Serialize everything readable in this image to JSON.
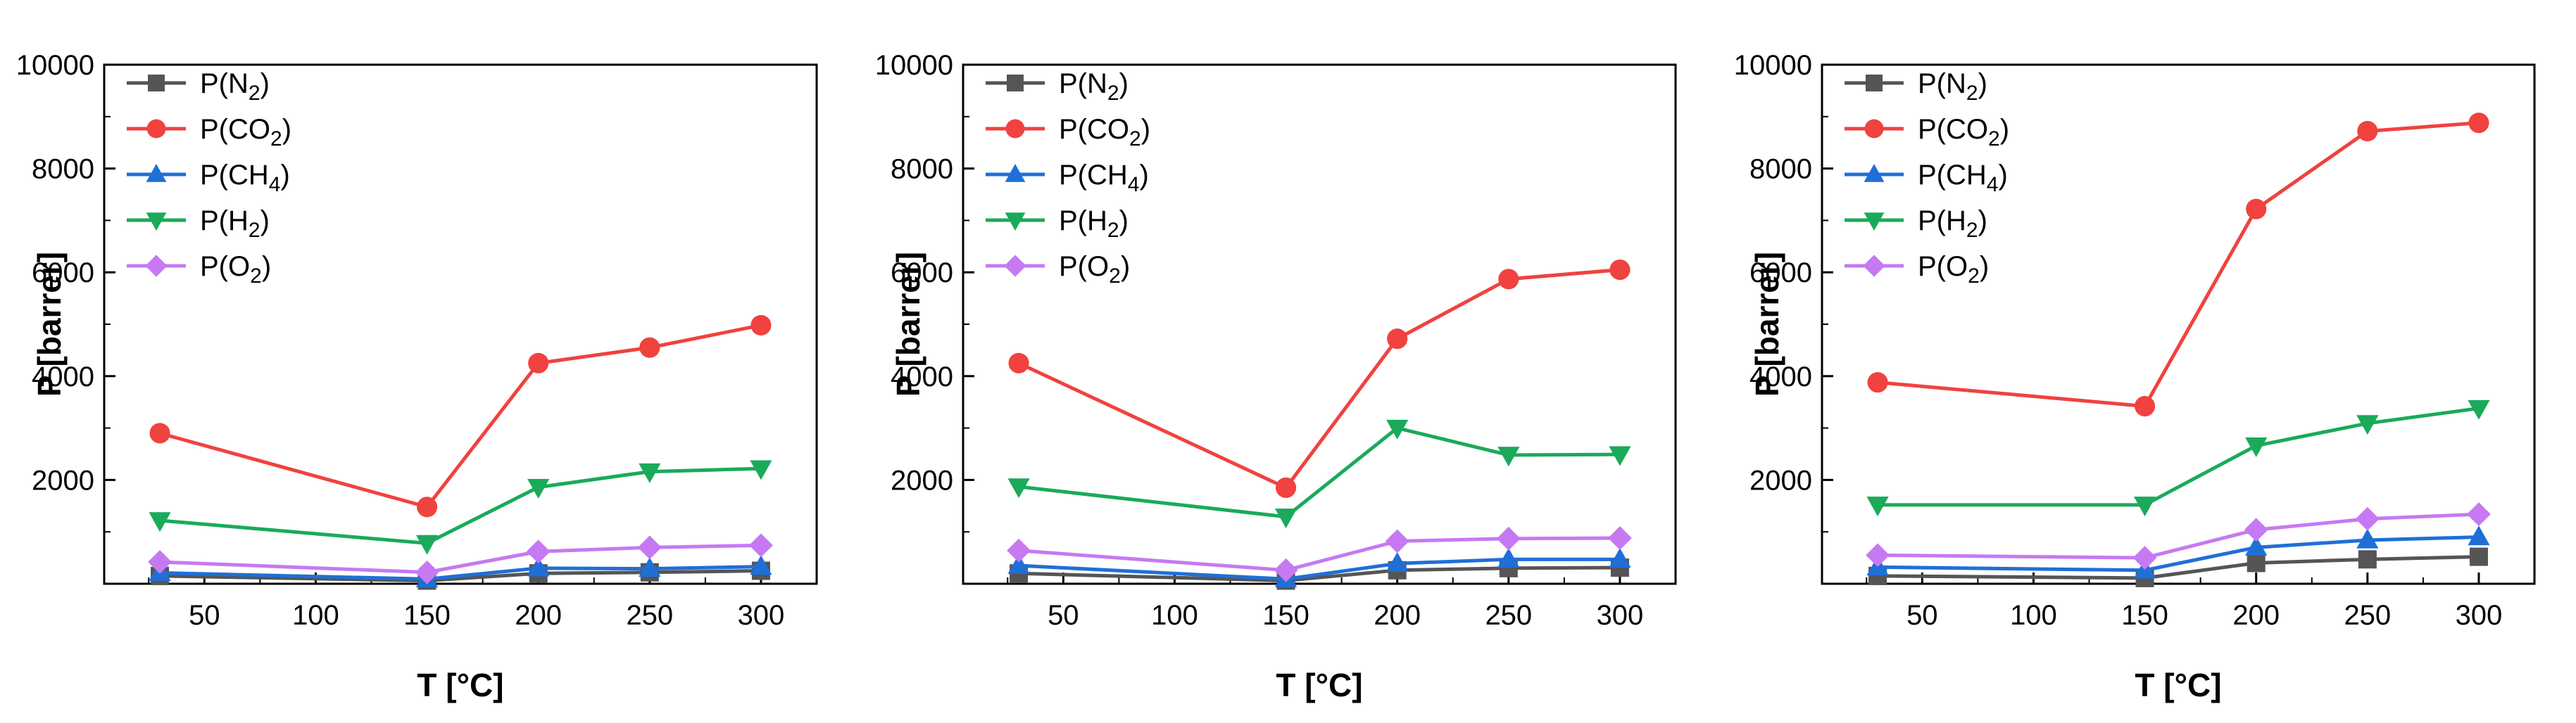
{
  "chart_data": [
    {
      "type": "line",
      "title": "",
      "xlabel": "T [°C]",
      "ylabel": "P [barrer]",
      "xlim": [
        5,
        325
      ],
      "ylim": [
        0,
        10000
      ],
      "xticks": [
        50,
        100,
        150,
        200,
        250,
        300
      ],
      "yticks": [
        2000,
        4000,
        6000,
        8000,
        10000
      ],
      "grid": false,
      "legend_position": "top-left",
      "x": [
        30,
        150,
        200,
        250,
        300
      ],
      "series": [
        {
          "name": "P(N2)",
          "label_main": "P(N",
          "label_sub": "2",
          "label_end": ")",
          "color": "#555555",
          "marker": "square",
          "values": [
            150,
            60,
            200,
            220,
            250
          ]
        },
        {
          "name": "P(CO2)",
          "label_main": "P(CO",
          "label_sub": "2",
          "label_end": ")",
          "color": "#f0423f",
          "marker": "circle",
          "values": [
            2900,
            1480,
            4250,
            4550,
            4980
          ]
        },
        {
          "name": "P(CH4)",
          "label_main": "P(CH",
          "label_sub": "4",
          "label_end": ")",
          "color": "#1f6fd6",
          "marker": "triangle-up",
          "values": [
            210,
            90,
            300,
            290,
            330
          ]
        },
        {
          "name": "P(H2)",
          "label_main": "P(H",
          "label_sub": "2",
          "label_end": ")",
          "color": "#1aaa5a",
          "marker": "triangle-down",
          "values": [
            1220,
            780,
            1860,
            2160,
            2220
          ]
        },
        {
          "name": "P(O2)",
          "label_main": "P(O",
          "label_sub": "2",
          "label_end": ")",
          "color": "#c679f2",
          "marker": "diamond",
          "values": [
            420,
            220,
            620,
            700,
            740
          ]
        }
      ]
    },
    {
      "type": "line",
      "title": "",
      "xlabel": "T [°C]",
      "ylabel": "P [barrer]",
      "xlim": [
        5,
        325
      ],
      "ylim": [
        0,
        10000
      ],
      "xticks": [
        50,
        100,
        150,
        200,
        250,
        300
      ],
      "yticks": [
        2000,
        4000,
        6000,
        8000,
        10000
      ],
      "grid": false,
      "legend_position": "top-left",
      "x": [
        30,
        150,
        200,
        250,
        300
      ],
      "series": [
        {
          "name": "P(N2)",
          "label_main": "P(N",
          "label_sub": "2",
          "label_end": ")",
          "color": "#555555",
          "marker": "square",
          "values": [
            200,
            60,
            260,
            300,
            310
          ]
        },
        {
          "name": "P(CO2)",
          "label_main": "P(CO",
          "label_sub": "2",
          "label_end": ")",
          "color": "#f0423f",
          "marker": "circle",
          "values": [
            4250,
            1850,
            4720,
            5870,
            6050
          ]
        },
        {
          "name": "P(CH4)",
          "label_main": "P(CH",
          "label_sub": "4",
          "label_end": ")",
          "color": "#1f6fd6",
          "marker": "triangle-up",
          "values": [
            350,
            90,
            390,
            470,
            470
          ]
        },
        {
          "name": "P(H2)",
          "label_main": "P(H",
          "label_sub": "2",
          "label_end": ")",
          "color": "#1aaa5a",
          "marker": "triangle-down",
          "values": [
            1870,
            1290,
            3000,
            2480,
            2490
          ]
        },
        {
          "name": "P(O2)",
          "label_main": "P(O",
          "label_sub": "2",
          "label_end": ")",
          "color": "#c679f2",
          "marker": "diamond",
          "values": [
            640,
            260,
            820,
            870,
            880
          ]
        }
      ]
    },
    {
      "type": "line",
      "title": "",
      "xlabel": "T [°C]",
      "ylabel": "P [barrer]",
      "xlim": [
        5,
        325
      ],
      "ylim": [
        0,
        10000
      ],
      "xticks": [
        50,
        100,
        150,
        200,
        250,
        300
      ],
      "yticks": [
        2000,
        4000,
        6000,
        8000,
        10000
      ],
      "grid": false,
      "legend_position": "top-left",
      "x": [
        30,
        150,
        200,
        250,
        300
      ],
      "series": [
        {
          "name": "P(N2)",
          "label_main": "P(N",
          "label_sub": "2",
          "label_end": ")",
          "color": "#555555",
          "marker": "square",
          "values": [
            150,
            110,
            400,
            470,
            520
          ]
        },
        {
          "name": "P(CO2)",
          "label_main": "P(CO",
          "label_sub": "2",
          "label_end": ")",
          "color": "#f0423f",
          "marker": "circle",
          "values": [
            3880,
            3420,
            7220,
            8720,
            8880
          ]
        },
        {
          "name": "P(CH4)",
          "label_main": "P(CH",
          "label_sub": "4",
          "label_end": ")",
          "color": "#1f6fd6",
          "marker": "triangle-up",
          "values": [
            320,
            260,
            700,
            840,
            900
          ]
        },
        {
          "name": "P(H2)",
          "label_main": "P(H",
          "label_sub": "2",
          "label_end": ")",
          "color": "#1aaa5a",
          "marker": "triangle-down",
          "values": [
            1520,
            1520,
            2660,
            3090,
            3380
          ]
        },
        {
          "name": "P(O2)",
          "label_main": "P(O",
          "label_sub": "2",
          "label_end": ")",
          "color": "#c679f2",
          "marker": "diamond",
          "values": [
            550,
            500,
            1040,
            1250,
            1340
          ]
        }
      ]
    }
  ]
}
